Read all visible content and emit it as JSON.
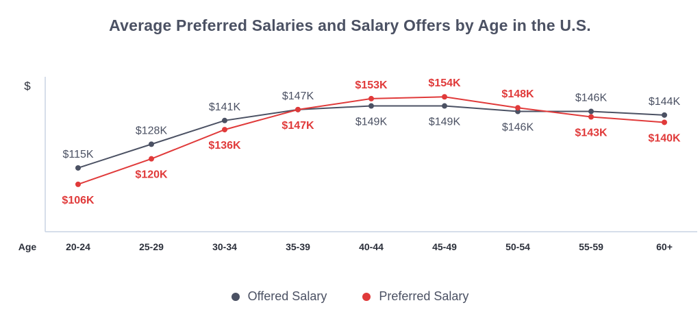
{
  "chart_data": {
    "type": "line",
    "title": "Average Preferred Salaries and Salary Offers by Age in the U.S.",
    "ylabel": "$",
    "xlabel": "Age",
    "categories": [
      "20-24",
      "25-29",
      "30-34",
      "35-39",
      "40-44",
      "45-49",
      "50-54",
      "55-59",
      "60+"
    ],
    "ylim": [
      80,
      165
    ],
    "grid": false,
    "legend_position": "bottom-center",
    "series": [
      {
        "name": "Offered Salary",
        "color": "#4b5163",
        "values": [
          115,
          128,
          141,
          147,
          149,
          149,
          146,
          146,
          144
        ],
        "labels": [
          "$115K",
          "$128K",
          "$141K",
          "$147K",
          "$149K",
          "$149K",
          "$146K",
          "$146K",
          "$144K"
        ]
      },
      {
        "name": "Preferred Salary",
        "color": "#e03a3a",
        "values": [
          106,
          120,
          136,
          147,
          153,
          154,
          148,
          143,
          140
        ],
        "labels": [
          "$106K",
          "$120K",
          "$136K",
          "$147K",
          "$153K",
          "$154K",
          "$148K",
          "$143K",
          "$140K"
        ]
      }
    ]
  },
  "legend": {
    "offered_label": "Offered Salary",
    "preferred_label": "Preferred Salary"
  }
}
